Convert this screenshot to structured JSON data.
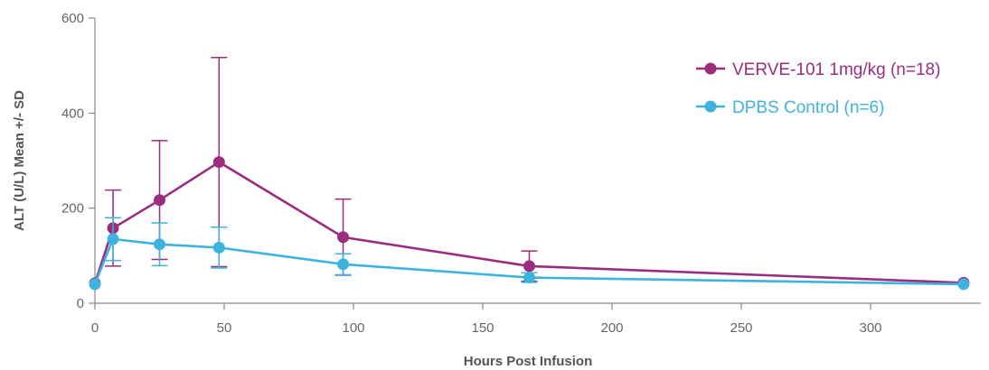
{
  "chart_data": {
    "type": "line",
    "title": "",
    "xlabel": "Hours Post Infusion",
    "ylabel": "ALT (U/L) Mean +/- SD",
    "xlim": [
      0,
      345
    ],
    "ylim": [
      0,
      600
    ],
    "x_ticks": [
      "0",
      "50",
      "100",
      "150",
      "200",
      "250",
      "300"
    ],
    "y_ticks": [
      "0",
      "200",
      "400",
      "600"
    ],
    "grid": false,
    "legend_position": "top-right",
    "series": [
      {
        "name": "VERVE-101 1mg/kg (n=18)",
        "color": "#9b2d7f",
        "points": [
          {
            "x": 0,
            "y": 42,
            "sd": 0
          },
          {
            "x": 7,
            "y": 158,
            "sd": 80
          },
          {
            "x": 25,
            "y": 217,
            "sd": 125
          },
          {
            "x": 48,
            "y": 297,
            "sd": 220
          },
          {
            "x": 96,
            "y": 139,
            "sd": 80
          },
          {
            "x": 168,
            "y": 78,
            "sd": 32
          },
          {
            "x": 336,
            "y": 43,
            "sd": 0
          }
        ]
      },
      {
        "name": "DPBS Control (n=6)",
        "color": "#3fb3e0",
        "points": [
          {
            "x": 0,
            "y": 40,
            "sd": 0
          },
          {
            "x": 7,
            "y": 135,
            "sd": 45
          },
          {
            "x": 25,
            "y": 124,
            "sd": 45
          },
          {
            "x": 48,
            "y": 117,
            "sd": 43
          },
          {
            "x": 96,
            "y": 82,
            "sd": 22
          },
          {
            "x": 168,
            "y": 54,
            "sd": 10
          },
          {
            "x": 336,
            "y": 40,
            "sd": 0
          }
        ]
      }
    ]
  }
}
